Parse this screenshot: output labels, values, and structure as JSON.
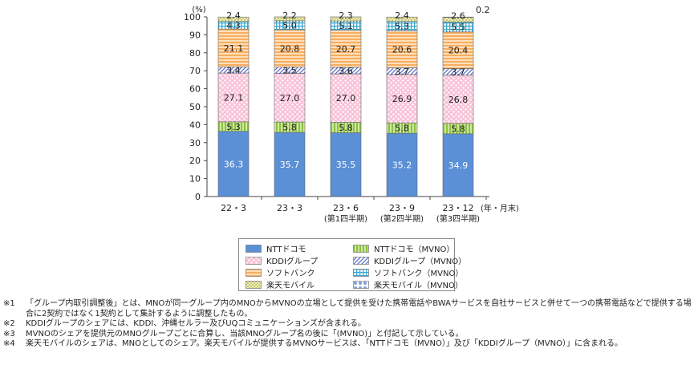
{
  "chart_data": {
    "type": "bar",
    "stacked": true,
    "unit_label": "(%)",
    "ylim": [
      0,
      100
    ],
    "y_ticks": [
      "0",
      "10",
      "20",
      "30",
      "40",
      "50",
      "60",
      "70",
      "80",
      "90",
      "100"
    ],
    "categories": [
      {
        "label": "22・3",
        "sub": ""
      },
      {
        "label": "23・3",
        "sub": ""
      },
      {
        "label": "23・6",
        "sub": "(第1四半期)"
      },
      {
        "label": "23・9",
        "sub": "(第2四半期)"
      },
      {
        "label": "23・12",
        "sub": "(第3四半期)"
      }
    ],
    "x_unit": "(年・月末)",
    "series": [
      {
        "name": "NTTドコモ",
        "values": [
          36.3,
          35.7,
          35.5,
          35.2,
          34.9
        ],
        "color": "#5b8fd6",
        "pattern": "solid"
      },
      {
        "name": "NTTドコモ（MVNO）",
        "values": [
          5.3,
          5.8,
          5.8,
          5.8,
          5.8
        ],
        "color": "#a8d05a",
        "pattern": "vstripe"
      },
      {
        "name": "KDDIグループ",
        "values": [
          27.1,
          27.0,
          27.0,
          26.9,
          26.8
        ],
        "color": "#f4a6c4",
        "pattern": "dots"
      },
      {
        "name": "KDDIグループ（MVNO）",
        "values": [
          3.4,
          3.5,
          3.6,
          3.7,
          3.7
        ],
        "color": "#6d7fd0",
        "pattern": "diag"
      },
      {
        "name": "ソフトバンク",
        "values": [
          21.1,
          20.8,
          20.7,
          20.6,
          20.4
        ],
        "color": "#f8b26a",
        "pattern": "hstripe"
      },
      {
        "name": "ソフトバンク（MVNO）",
        "values": [
          4.3,
          5.0,
          5.1,
          5.3,
          5.5
        ],
        "color": "#3aa7cf",
        "pattern": "grid"
      },
      {
        "name": "楽天モバイル",
        "values": [
          2.4,
          2.2,
          2.3,
          2.4,
          2.6
        ],
        "color": "#c6c63a",
        "pattern": "dots2"
      },
      {
        "name": "楽天モバイル（MVNO）",
        "values": [
          null,
          null,
          null,
          null,
          0.2
        ],
        "color": "#7fa0d8",
        "pattern": "check"
      }
    ],
    "data_labels": [
      [
        "36.3",
        "5.3",
        "27.1",
        "3.4",
        "21.1",
        "4.3",
        "2.4",
        ""
      ],
      [
        "35.7",
        "5.8",
        "27.0",
        "3.5",
        "20.8",
        "5.0",
        "2.2",
        ""
      ],
      [
        "35.5",
        "5.8",
        "27.0",
        "3.6",
        "20.7",
        "5.1",
        "2.3",
        ""
      ],
      [
        "35.2",
        "5.8",
        "26.9",
        "3.7",
        "20.6",
        "5.3",
        "2.4",
        ""
      ],
      [
        "34.9",
        "5.8",
        "26.8",
        "3.7",
        "20.4",
        "5.5",
        "2.6",
        "0.2"
      ]
    ],
    "legend_placement": "bottom",
    "grid": false
  },
  "notes": [
    {
      "mark": "※1",
      "text": "「グループ内取引調整後」とは、MNOが同一グループ内のMNOからMVNOの立場として提供を受けた携帯電話やBWAサービスを自社サービスと併せて一つの携帯電話などで提供する場合に2契約ではなく1契約として集計するように調整したもの。"
    },
    {
      "mark": "※2",
      "text": "KDDIグループのシェアには、KDDI、沖縄セルラー及びUQコミュニケーションズが含まれる。"
    },
    {
      "mark": "※3",
      "text": "MVNOのシェアを提供元のMNOグループごとに合算し、当該MNOグループ名の後に「(MVNO)」と付記して示している。"
    },
    {
      "mark": "※4",
      "text": "楽天モバイルのシェアは、MNOとしてのシェア。楽天モバイルが提供するMVNOサービスは、「NTTドコモ（MVNO）」及び「KDDIグループ（MVNO）」に含まれる。"
    }
  ]
}
